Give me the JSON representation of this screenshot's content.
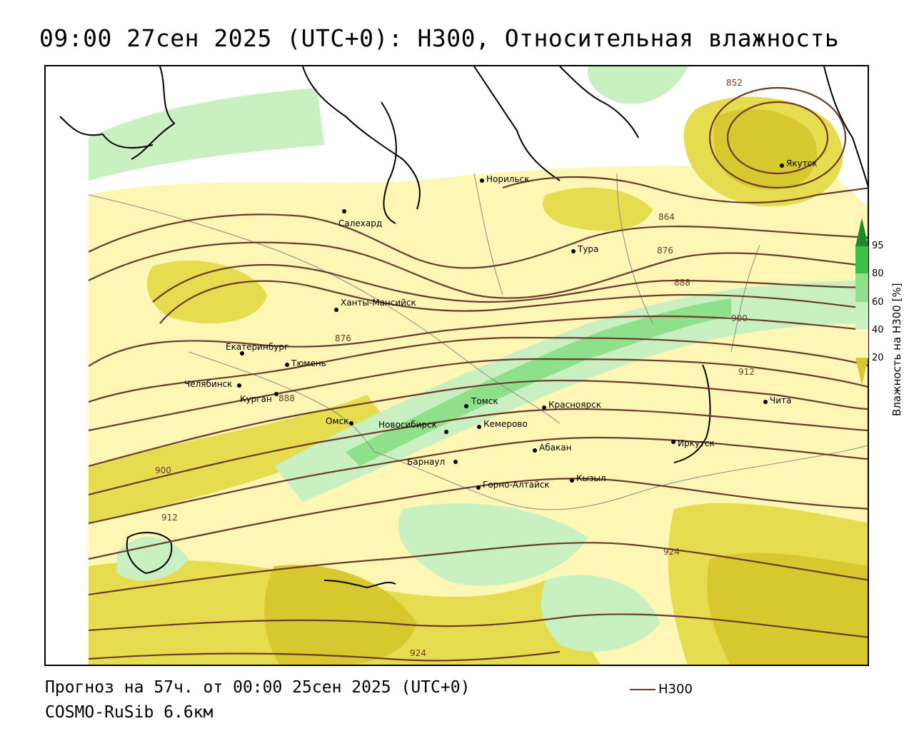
{
  "title": "09:00 27сен 2025 (UTC+0): H300, Относительная влажность",
  "footer": {
    "forecast": "Прогноз на 57ч. от 00:00 25сен 2025 (UTC+0)",
    "model": "COSMO-RuSib 6.6км"
  },
  "legend": {
    "h300_label": "H300",
    "h300_color": "#6b3b2c"
  },
  "colorbar": {
    "title": "Влажность на H300 [%]",
    "ticks": [
      "95",
      "80",
      "60",
      "40",
      "20"
    ],
    "colors": {
      "very_dry": "#d8c830",
      "dry": "#e6dc50",
      "semi_dry": "#fdf6b4",
      "neutral": "#ffffff",
      "moist": "#c8f0c0",
      "wet": "#8ee08a",
      "very_wet": "#3ec04a",
      "saturated": "#1a8a2a"
    }
  },
  "cities": [
    {
      "name": "Якутск"
    },
    {
      "name": "Норильск"
    },
    {
      "name": "Салехард"
    },
    {
      "name": "Тура"
    },
    {
      "name": "Ханты-Мансийск"
    },
    {
      "name": "Екатеринбург"
    },
    {
      "name": "Тюмень"
    },
    {
      "name": "Челябинск"
    },
    {
      "name": "Курган"
    },
    {
      "name": "Омск"
    },
    {
      "name": "Новосибирск"
    },
    {
      "name": "Томск"
    },
    {
      "name": "Кемерово"
    },
    {
      "name": "Красноярск"
    },
    {
      "name": "Абакан"
    },
    {
      "name": "Барнаул"
    },
    {
      "name": "Горно-Алтайск"
    },
    {
      "name": "Кызыл"
    },
    {
      "name": "Иркутск"
    },
    {
      "name": "Чита"
    }
  ],
  "contour_labels": [
    "852",
    "864",
    "876",
    "888",
    "900",
    "912",
    "876",
    "888",
    "900",
    "912",
    "924",
    "924"
  ]
}
